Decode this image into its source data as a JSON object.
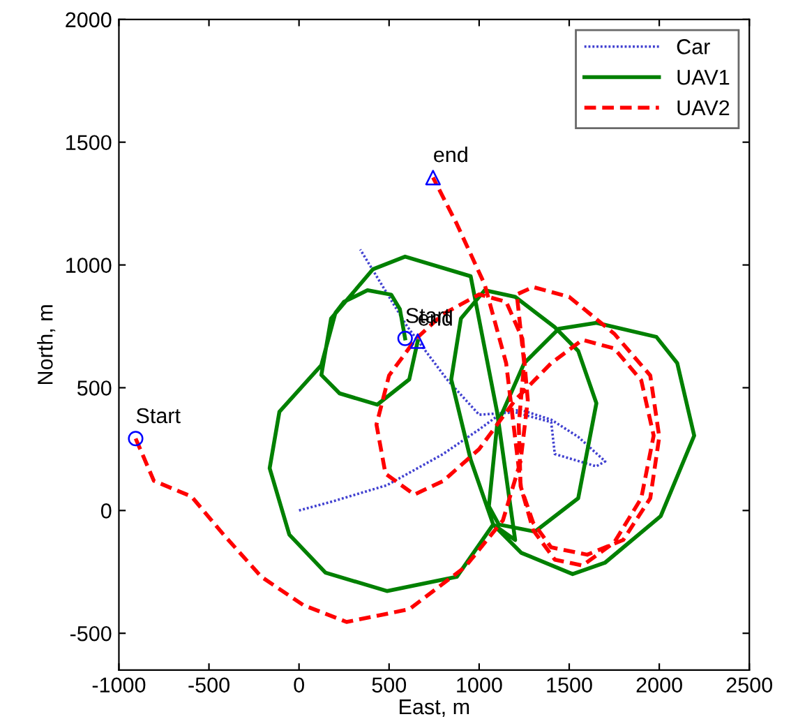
{
  "chart_data": {
    "type": "line",
    "xlabel": "East, m",
    "ylabel": "North, m",
    "xlim": [
      -1000,
      2500
    ],
    "ylim": [
      -650,
      2000
    ],
    "xticks": [
      -1000,
      -500,
      0,
      500,
      1000,
      1500,
      2000,
      2500
    ],
    "yticks": [
      -500,
      0,
      500,
      1000,
      1500,
      2000
    ],
    "grid": false,
    "legend": "top right",
    "series": [
      {
        "name": "Car",
        "color": "#4040d0",
        "line_style": "dotted",
        "x": [
          0,
          200,
          488,
          800,
          1000,
          1130,
          1230,
          1400,
          1550,
          1700,
          1650,
          1420,
          1400,
          1200,
          1000,
          820,
          600,
          340
        ],
        "values": [
          0,
          40,
          103,
          230,
          330,
          400,
          410,
          370,
          300,
          200,
          180,
          230,
          360,
          400,
          390,
          535,
          750,
          1063
        ]
      },
      {
        "name": "UAV1",
        "color": "#008000",
        "line_style": "solid",
        "x": [
          589,
          560,
          512,
          380,
          250,
          202,
          124,
          -109,
          -163,
          -54,
          147,
          488,
          876,
          1078,
          1233,
          1519,
          1698,
          2008,
          2194,
          2100,
          1984,
          1651,
          1442,
          1250,
          1100,
          1054,
          1109,
          1310,
          1550,
          1651,
          1550,
          1419,
          1200,
          1031,
          899,
          845,
          953,
          1078,
          1200,
          1100,
          953,
          589,
          411,
          178,
          124,
          225,
          434,
          612,
          659
        ],
        "values": [
          701,
          820,
          879,
          897,
          850,
          805,
          592,
          402,
          172,
          -98,
          -253,
          -328,
          -270,
          -57,
          -172,
          -259,
          -213,
          -23,
          305,
          600,
          707,
          764,
          740,
          600,
          350,
          17,
          -57,
          -86,
          50,
          437,
          650,
          747,
          870,
          897,
          782,
          534,
          207,
          -57,
          -120,
          400,
          954,
          1034,
          983,
          782,
          552,
          477,
          431,
          534,
          690
        ]
      },
      {
        "name": "UAV2",
        "color": "#ff0000",
        "line_style": "dashed",
        "x": [
          -907,
          -806,
          -597,
          -419,
          -209,
          23,
          264,
          612,
          922,
          1132,
          1230,
          1270,
          1240,
          1150,
          1000,
          800,
          650,
          500,
          430,
          480,
          640,
          800,
          1000,
          1200,
          1400,
          1574,
          1750,
          1900,
          1969,
          1900,
          1750,
          1574,
          1420,
          1300,
          1230,
          1220,
          1250,
          1209,
          1300,
          1500,
          1750,
          1950,
          2000,
          1950,
          1800,
          1600,
          1400,
          1300,
          1233,
          1150,
          1031,
          876,
          744
        ],
        "values": [
          293,
          121,
          57,
          -98,
          -270,
          -385,
          -454,
          -402,
          -230,
          -40,
          200,
          450,
          700,
          850,
          880,
          800,
          700,
          550,
          350,
          150,
          65,
          120,
          250,
          450,
          600,
          695,
          660,
          530,
          305,
          50,
          -130,
          -224,
          -200,
          -80,
          100,
          350,
          600,
          880,
          910,
          870,
          720,
          550,
          300,
          50,
          -120,
          -180,
          -150,
          -50,
          92,
          600,
          920,
          1167,
          1356
        ]
      },
      {
        "type": "scatter",
        "marker": "circle",
        "color": "#0000ff",
        "x": [
          -907,
          589
        ],
        "values": [
          293,
          701
        ]
      },
      {
        "type": "scatter",
        "marker": "triangle",
        "color": "#0000ff",
        "x": [
          659,
          744
        ],
        "values": [
          690,
          1356
        ]
      }
    ],
    "annotations": [
      {
        "text": "Start",
        "x": -907,
        "y": 293
      },
      {
        "text": "Start",
        "x": 589,
        "y": 701
      },
      {
        "text": "end",
        "x": 659,
        "y": 690
      },
      {
        "text": "end",
        "x": 744,
        "y": 1356
      }
    ]
  }
}
